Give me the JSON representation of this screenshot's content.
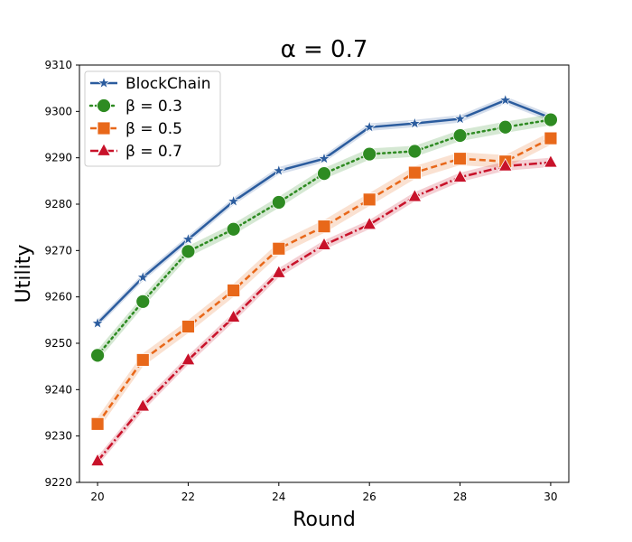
{
  "chart_data": {
    "type": "line",
    "title": "α = 0.7",
    "xlabel": "Round",
    "ylabel": "Utility",
    "xlim": [
      19.6,
      30.4
    ],
    "ylim": [
      9220,
      9310
    ],
    "xticks": [
      20,
      22,
      24,
      26,
      28,
      30
    ],
    "yticks": [
      9220,
      9230,
      9240,
      9250,
      9260,
      9270,
      9280,
      9290,
      9300,
      9310
    ],
    "legend_position": "top-left",
    "grid": false,
    "x": [
      20,
      21,
      22,
      23,
      24,
      25,
      26,
      27,
      28,
      29,
      30
    ],
    "series": [
      {
        "name": "BlockChain",
        "color": "#2b5c9e",
        "marker": "star",
        "linestyle": "solid",
        "values": [
          9254.3,
          9264.2,
          9272.4,
          9280.6,
          9287.2,
          9289.8,
          9296.6,
          9297.4,
          9298.4,
          9302.4,
          9298.6
        ],
        "band": 0.8
      },
      {
        "name": "β = 0.3",
        "color": "#2e8b22",
        "marker": "circle",
        "linestyle": "dotted",
        "values": [
          9247.4,
          9259.0,
          9269.8,
          9274.6,
          9280.4,
          9286.6,
          9290.8,
          9291.4,
          9294.8,
          9296.6,
          9298.2
        ],
        "band": 1.2
      },
      {
        "name": "β = 0.5",
        "color": "#e8681a",
        "marker": "square",
        "linestyle": "dashed",
        "values": [
          9232.6,
          9246.4,
          9253.6,
          9261.4,
          9270.4,
          9275.2,
          9281.0,
          9286.8,
          9289.8,
          9289.2,
          9294.2
        ],
        "band": 1.4
      },
      {
        "name": "β = 0.7",
        "color": "#c8122a",
        "marker": "triangle",
        "linestyle": "dashdot",
        "values": [
          9224.6,
          9236.4,
          9246.4,
          9255.6,
          9265.2,
          9271.2,
          9275.6,
          9281.6,
          9285.8,
          9288.2,
          9289.0
        ],
        "band": 1.0
      }
    ]
  }
}
